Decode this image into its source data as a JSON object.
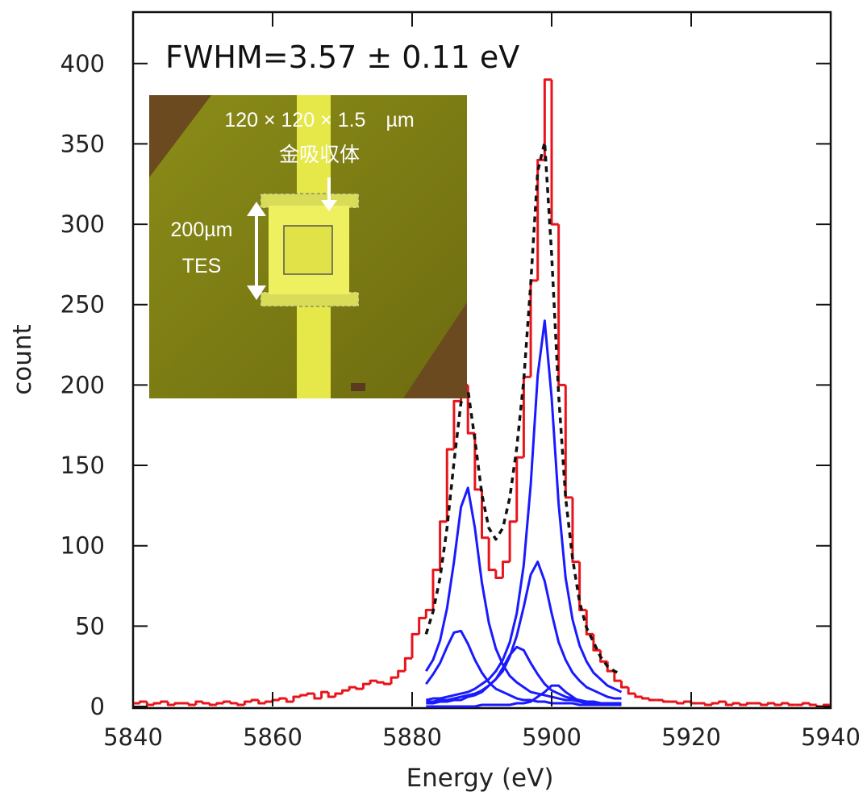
{
  "chart_data": {
    "type": "line",
    "title": "FWHM=3.57 ± 0.11 eV",
    "xlabel": "Energy (eV)",
    "ylabel": "count",
    "xlim": [
      5840,
      5940
    ],
    "ylim": [
      0,
      432
    ],
    "xticks": [
      5840,
      5860,
      5880,
      5900,
      5920,
      5940
    ],
    "yticks": [
      0,
      50,
      100,
      150,
      200,
      250,
      300,
      350,
      400
    ],
    "annotations": [
      "120 × 120 × 1.5　µm",
      "金吸収体",
      "200µm",
      "TES"
    ],
    "series": [
      {
        "color": "#e8141b",
        "step": true,
        "x": [
          5840,
          5841,
          5842,
          5843,
          5844,
          5845,
          5846,
          5847,
          5848,
          5849,
          5850,
          5851,
          5852,
          5853,
          5854,
          5855,
          5856,
          5857,
          5858,
          5859,
          5860,
          5861,
          5862,
          5863,
          5864,
          5865,
          5866,
          5867,
          5868,
          5869,
          5870,
          5871,
          5872,
          5873,
          5874,
          5875,
          5876,
          5877,
          5878,
          5879,
          5880,
          5881,
          5882,
          5883,
          5884,
          5885,
          5886,
          5887,
          5888,
          5889,
          5890,
          5891,
          5892,
          5893,
          5894,
          5895,
          5896,
          5897,
          5898,
          5899,
          5900,
          5901,
          5902,
          5903,
          5904,
          5905,
          5906,
          5907,
          5908,
          5909,
          5910,
          5911,
          5912,
          5913,
          5914,
          5915,
          5916,
          5917,
          5918,
          5919,
          5920,
          5921,
          5922,
          5923,
          5924,
          5925,
          5926,
          5927,
          5928,
          5929,
          5930,
          5931,
          5932,
          5933,
          5934,
          5935,
          5936,
          5937,
          5938,
          5939
        ],
        "values": [
          2,
          3,
          1,
          2,
          3,
          1,
          2,
          2,
          1,
          3,
          2,
          1,
          2,
          3,
          2,
          1,
          3,
          4,
          2,
          3,
          4,
          5,
          3,
          6,
          7,
          8,
          5,
          9,
          6,
          8,
          10,
          12,
          11,
          14,
          16,
          15,
          14,
          18,
          22,
          30,
          45,
          55,
          60,
          85,
          115,
          160,
          190,
          200,
          170,
          135,
          105,
          85,
          80,
          90,
          115,
          155,
          205,
          265,
          340,
          390,
          300,
          200,
          130,
          90,
          60,
          45,
          35,
          28,
          22,
          16,
          12,
          8,
          6,
          5,
          4,
          4,
          3,
          3,
          2,
          3,
          2,
          2,
          1,
          2,
          3,
          1,
          2,
          1,
          2,
          2,
          1,
          2,
          1,
          2,
          1,
          1,
          2,
          1,
          0,
          1
        ]
      },
      {
        "color": "#111111",
        "dash": true,
        "x": [
          5882,
          5883,
          5884,
          5885,
          5886,
          5887,
          5888,
          5889,
          5890,
          5891,
          5892,
          5893,
          5894,
          5895,
          5896,
          5897,
          5898,
          5899,
          5900,
          5901,
          5902,
          5903,
          5904,
          5905,
          5906,
          5907,
          5908,
          5909,
          5910
        ],
        "values": [
          45,
          59,
          80,
          111,
          152,
          189,
          197,
          166,
          132,
          111,
          104,
          111,
          130,
          161,
          203,
          263,
          333,
          351,
          281,
          194,
          130,
          92,
          65,
          49,
          40,
          31,
          25,
          22,
          20
        ]
      },
      {
        "color": "#1a1aff",
        "x": [
          5882,
          5883,
          5884,
          5885,
          5886,
          5887,
          5888,
          5889,
          5890,
          5891,
          5892,
          5893,
          5894,
          5895,
          5896,
          5897,
          5898,
          5899,
          5900,
          5901,
          5902,
          5903,
          5904,
          5905,
          5906,
          5907,
          5908,
          5909,
          5910
        ],
        "values": [
          22,
          29,
          41,
          61,
          90,
          124,
          136,
          111,
          77,
          52,
          36,
          26,
          19,
          15,
          12,
          9,
          8,
          7,
          6,
          5,
          4,
          4,
          3,
          3,
          3,
          2,
          2,
          2,
          2
        ]
      },
      {
        "color": "#1a1aff",
        "x": [
          5882,
          5883,
          5884,
          5885,
          5886,
          5887,
          5888,
          5889,
          5890,
          5891,
          5892,
          5893,
          5894,
          5895,
          5896,
          5897,
          5898,
          5899,
          5900,
          5901,
          5902,
          5903,
          5904,
          5905,
          5906,
          5907,
          5908,
          5909,
          5910
        ],
        "values": [
          14,
          20,
          27,
          37,
          46,
          47,
          39,
          29,
          21,
          15,
          11,
          9,
          7,
          5,
          4,
          4,
          3,
          3,
          2,
          2,
          2,
          2,
          1,
          1,
          1,
          1,
          1,
          1,
          1
        ]
      },
      {
        "color": "#1a1aff",
        "x": [
          5882,
          5883,
          5884,
          5885,
          5886,
          5887,
          5888,
          5889,
          5890,
          5891,
          5892,
          5893,
          5894,
          5895,
          5896,
          5897,
          5898,
          5899,
          5900,
          5901,
          5902,
          5903,
          5904,
          5905,
          5906,
          5907,
          5908,
          5909,
          5910
        ],
        "values": [
          4,
          5,
          5,
          6,
          7,
          8,
          9,
          11,
          14,
          17,
          22,
          29,
          40,
          58,
          88,
          138,
          206,
          240,
          192,
          126,
          80,
          54,
          38,
          28,
          21,
          17,
          13,
          11,
          9
        ]
      },
      {
        "color": "#1a1aff",
        "x": [
          5882,
          5883,
          5884,
          5885,
          5886,
          5887,
          5888,
          5889,
          5890,
          5891,
          5892,
          5893,
          5894,
          5895,
          5896,
          5897,
          5898,
          5899,
          5900,
          5901,
          5902,
          5903,
          5904,
          5905,
          5906,
          5907,
          5908,
          5909,
          5910
        ],
        "values": [
          3,
          3,
          4,
          4,
          5,
          6,
          7,
          8,
          10,
          13,
          17,
          22,
          31,
          44,
          62,
          82,
          90,
          78,
          58,
          40,
          29,
          21,
          16,
          12,
          10,
          8,
          6,
          5,
          5
        ]
      },
      {
        "color": "#1a1aff",
        "x": [
          5882,
          5883,
          5884,
          5885,
          5886,
          5887,
          5888,
          5889,
          5890,
          5891,
          5892,
          5893,
          5894,
          5895,
          5896,
          5897,
          5898,
          5899,
          5900,
          5901,
          5902,
          5903,
          5904,
          5905,
          5906,
          5907,
          5908,
          5909,
          5910
        ],
        "values": [
          2,
          2,
          3,
          3,
          4,
          4,
          6,
          7,
          9,
          13,
          17,
          24,
          32,
          37,
          35,
          27,
          20,
          14,
          10,
          8,
          6,
          5,
          4,
          3,
          3,
          2,
          2,
          2,
          2
        ]
      },
      {
        "color": "#1a1aff",
        "x": [
          5882,
          5883,
          5884,
          5885,
          5886,
          5887,
          5888,
          5889,
          5890,
          5891,
          5892,
          5893,
          5894,
          5895,
          5896,
          5897,
          5898,
          5899,
          5900,
          5901,
          5902,
          5903,
          5904,
          5905,
          5906,
          5907,
          5908,
          5909,
          5910
        ],
        "values": [
          0,
          0,
          0,
          0,
          0,
          0,
          0,
          0,
          1,
          1,
          1,
          1,
          1,
          2,
          2,
          3,
          6,
          9,
          13,
          13,
          9,
          6,
          3,
          2,
          2,
          1,
          1,
          1,
          1
        ]
      }
    ]
  }
}
